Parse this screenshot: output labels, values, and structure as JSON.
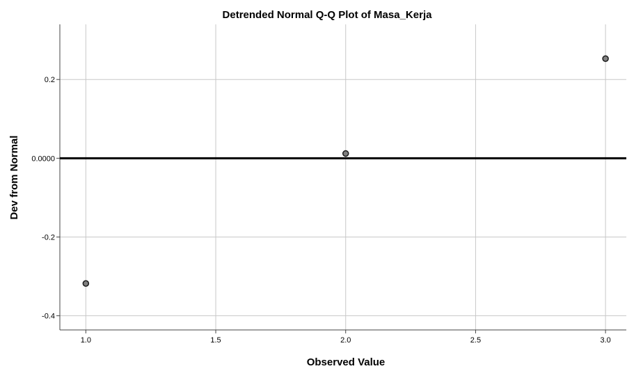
{
  "chart_data": {
    "type": "scatter",
    "title": "Detrended Normal Q-Q Plot of Masa_Kerja",
    "xlabel": "Observed Value",
    "ylabel": "Dev from Normal",
    "xlim": [
      0.9,
      3.08
    ],
    "ylim": [
      -0.436,
      0.34
    ],
    "x_ticks": [
      1.0,
      1.5,
      2.0,
      2.5,
      3.0
    ],
    "x_tick_labels": [
      "1.0",
      "1.5",
      "2.0",
      "2.5",
      "3.0"
    ],
    "y_ticks": [
      0.2,
      0.0,
      -0.2,
      -0.4
    ],
    "y_tick_labels": [
      "0.2",
      "0.0000",
      "-0.2",
      "-0.4"
    ],
    "grid": true,
    "reference_line_y": 0.0,
    "points": [
      {
        "x": 1.0,
        "y": -0.318
      },
      {
        "x": 2.0,
        "y": 0.012
      },
      {
        "x": 3.0,
        "y": 0.253
      }
    ],
    "colors": {
      "grid": "#c8c8c8",
      "axis": "#444444",
      "reference_line": "#000000",
      "point_fill": "#808080",
      "point_stroke": "#1a1a1a"
    }
  }
}
